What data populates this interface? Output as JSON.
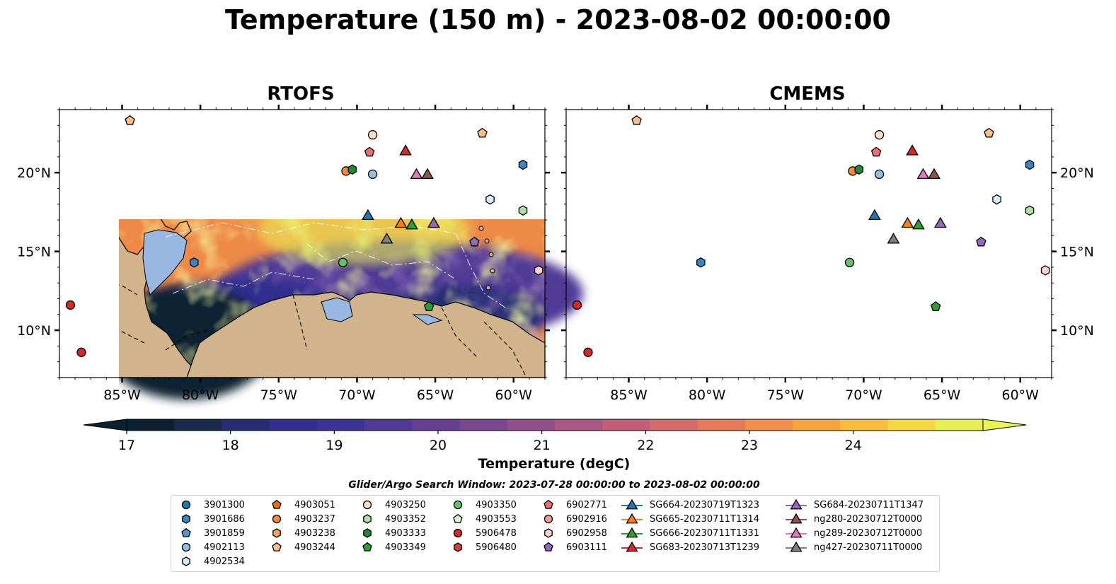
{
  "title": "Temperature (150 m) - 2023-08-02 00:00:00",
  "panels": [
    {
      "title": "RTOFS"
    },
    {
      "title": "CMEMS"
    }
  ],
  "map": {
    "lon_range": [
      -89,
      -58
    ],
    "lat_range": [
      7,
      24
    ],
    "lon_ticks": [
      "85°W",
      "80°W",
      "75°W",
      "70°W",
      "65°W",
      "60°W"
    ],
    "lat_ticks": [
      "20°N",
      "15°N",
      "10°N"
    ],
    "colors": {
      "land": "#d2b48c",
      "shelf": "#98b7e2",
      "contour": "#000000",
      "eez": "#ffffff"
    }
  },
  "colorbar": {
    "title": "Temperature (degC)",
    "ticks": [
      "17",
      "18",
      "19",
      "20",
      "21",
      "22",
      "23",
      "24"
    ],
    "range": [
      17,
      24.5
    ],
    "step": 0.5,
    "extend": "both",
    "colors": [
      "#0a2230",
      "#1a2a4d",
      "#252e75",
      "#302e8f",
      "#3d3296",
      "#503a96",
      "#643f93",
      "#7b4690",
      "#934e8b",
      "#aa5783",
      "#c25f77",
      "#d56a68",
      "#e77858",
      "#f28e48",
      "#f7a43f",
      "#f8bd3c",
      "#f5d743",
      "#e8ef55"
    ],
    "under_color": "#0a2230",
    "over_color": "#e8f74f"
  },
  "legend": {
    "title": "Glider/Argo Search Window: 2023-07-28 00:00:00 to 2023-08-02 00:00:00",
    "argo": [
      {
        "label": "3901300",
        "marker": "circle",
        "color": "#1f77b4"
      },
      {
        "label": "3901686",
        "marker": "hexagon",
        "color": "#3a86c4"
      },
      {
        "label": "3901859",
        "marker": "pentagon",
        "color": "#5596d0"
      },
      {
        "label": "4902113",
        "marker": "circle",
        "color": "#8fc0e8"
      },
      {
        "label": "4902534",
        "marker": "hexagon",
        "color": "#d6ebf9"
      },
      {
        "label": "4903051",
        "marker": "pentagon",
        "color": "#e6700c"
      },
      {
        "label": "4903237",
        "marker": "circle",
        "color": "#f58b33"
      },
      {
        "label": "4903238",
        "marker": "hexagon",
        "color": "#fba35e"
      },
      {
        "label": "4903244",
        "marker": "pentagon",
        "color": "#fdbf87"
      },
      {
        "label": "4903250",
        "marker": "circle",
        "color": "#fde0c5"
      },
      {
        "label": "4903352",
        "marker": "hexagon",
        "color": "#a9e39d"
      },
      {
        "label": "4903333",
        "marker": "hexagon",
        "color": "#1f8a2e"
      },
      {
        "label": "4903349",
        "marker": "pentagon",
        "color": "#2ca02c"
      },
      {
        "label": "4903350",
        "marker": "circle",
        "color": "#62c462"
      },
      {
        "label": "4903553",
        "marker": "pentagon",
        "color": "#d8f4d0"
      },
      {
        "label": "5906478",
        "marker": "circle",
        "color": "#d62728"
      },
      {
        "label": "5906480",
        "marker": "hexagon",
        "color": "#e03a3b"
      },
      {
        "label": "6902771",
        "marker": "pentagon",
        "color": "#ef6e74"
      },
      {
        "label": "6902916",
        "marker": "circle",
        "color": "#f59b9b"
      },
      {
        "label": "6902958",
        "marker": "hexagon",
        "color": "#fbd0d0"
      },
      {
        "label": "6903111",
        "marker": "pentagon",
        "color": "#8e6bbf"
      }
    ],
    "gliders": [
      {
        "label": "SG664-20230719T1323",
        "color": "#1f77b4"
      },
      {
        "label": "SG665-20230711T1314",
        "color": "#ff7f0e"
      },
      {
        "label": "SG666-20230711T1331",
        "color": "#2ca02c"
      },
      {
        "label": "SG683-20230713T1239",
        "color": "#d62728"
      },
      {
        "label": "SG684-20230711T1347",
        "color": "#9467bd"
      },
      {
        "label": "ng280-20230712T0000",
        "color": "#8c564b"
      },
      {
        "label": "ng289-20230712T0000",
        "color": "#e377c2"
      },
      {
        "label": "ng427-20230711T0000",
        "color": "#7f7f7f"
      }
    ]
  },
  "observations": [
    {
      "id": "5906478",
      "lon": -88.3,
      "lat": 11.6
    },
    {
      "id": "5906478",
      "lon": -87.6,
      "lat": 8.6
    },
    {
      "id": "4903244",
      "lon": -84.5,
      "lat": 23.3
    },
    {
      "id": "3901686",
      "lon": -80.4,
      "lat": 14.3
    },
    {
      "id": "4903350",
      "lon": -70.9,
      "lat": 14.3
    },
    {
      "id": "4903250",
      "lon": -69.0,
      "lat": 22.4
    },
    {
      "id": "6902771",
      "lon": -69.2,
      "lat": 21.3
    },
    {
      "id": "4903237",
      "lon": -70.7,
      "lat": 20.1
    },
    {
      "id": "4903333",
      "lon": -70.3,
      "lat": 20.2
    },
    {
      "id": "4902113",
      "lon": -69.0,
      "lat": 19.9
    },
    {
      "id": "4903244",
      "lon": -62.0,
      "lat": 22.5
    },
    {
      "id": "3901686",
      "lon": -59.4,
      "lat": 20.5
    },
    {
      "id": "4902534",
      "lon": -61.5,
      "lat": 18.3
    },
    {
      "id": "4903352",
      "lon": -59.4,
      "lat": 17.6
    },
    {
      "id": "6903111",
      "lon": -62.5,
      "lat": 15.6
    },
    {
      "id": "6902958",
      "lon": -58.4,
      "lat": 13.8
    },
    {
      "id": "4903349",
      "lon": -65.4,
      "lat": 11.5
    }
  ],
  "glider_positions": [
    {
      "id": "SG683-20230713T1239",
      "lon": -66.9,
      "lat": 21.4
    },
    {
      "id": "ng289-20230712T0000",
      "lon": -66.2,
      "lat": 19.9
    },
    {
      "id": "ng280-20230712T0000",
      "lon": -65.5,
      "lat": 19.9
    },
    {
      "id": "SG664-20230719T1323",
      "lon": -69.3,
      "lat": 17.3
    },
    {
      "id": "SG665-20230711T1314",
      "lon": -67.2,
      "lat": 16.8
    },
    {
      "id": "SG666-20230711T1331",
      "lon": -66.5,
      "lat": 16.7
    },
    {
      "id": "SG684-20230711T1347",
      "lon": -65.1,
      "lat": 16.8
    },
    {
      "id": "ng427-20230711T0000",
      "lon": -68.1,
      "lat": 15.8
    }
  ]
}
